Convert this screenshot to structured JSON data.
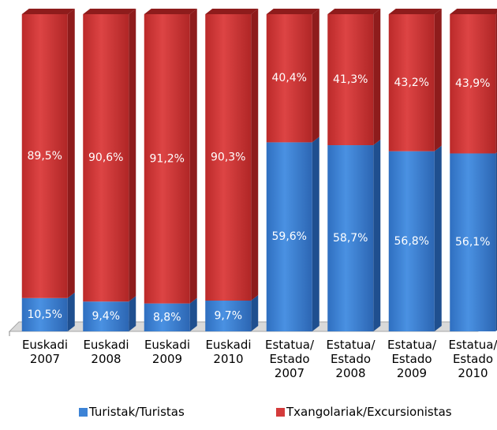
{
  "chart_data": {
    "type": "bar",
    "stacked": true,
    "categories": [
      "Euskadi\n2007",
      "Euskadi\n2008",
      "Euskadi\n2009",
      "Euskadi\n2010",
      "Estatua/\nEstado\n2007",
      "Estatua/\nEstado\n2008",
      "Estatua/\nEstado\n2009",
      "Estatua/\nEstado\n2010"
    ],
    "series": [
      {
        "name": "Turistak/Turistas",
        "color": "#3d83d6",
        "values": [
          10.5,
          9.4,
          8.8,
          9.7,
          59.6,
          58.7,
          56.8,
          56.1
        ],
        "value_labels": [
          "10,5%",
          "9,4%",
          "8,8%",
          "9,7%",
          "59,6%",
          "58,7%",
          "56,8%",
          "56,1%"
        ]
      },
      {
        "name": "Txangolariak/Excursionistas",
        "color": "#d43b3b",
        "values": [
          89.5,
          90.6,
          91.2,
          90.3,
          40.4,
          41.3,
          43.2,
          43.9
        ],
        "value_labels": [
          "89,5%",
          "90,6%",
          "91,2%",
          "90,3%",
          "40,4%",
          "41,3%",
          "43,2%",
          "43,9%"
        ]
      }
    ],
    "ylim": [
      0,
      100
    ]
  }
}
